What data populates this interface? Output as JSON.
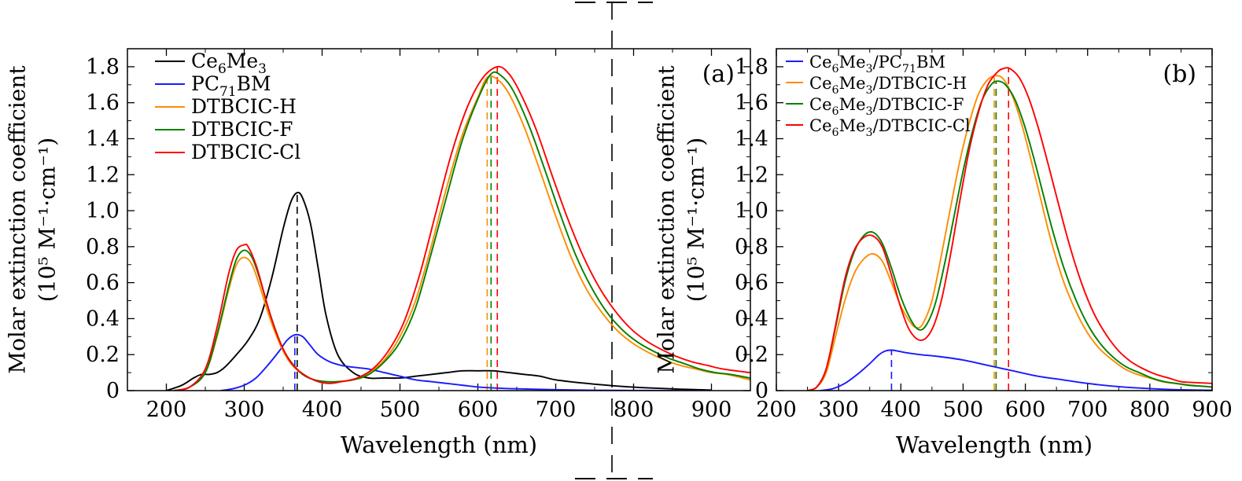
{
  "chart_data": [
    {
      "type": "line",
      "panel_label": "(a)",
      "xlabel": "Wavelength (nm)",
      "ylabel_line1": "Molar extinction coefficient",
      "ylabel_line2": "(10⁵ M⁻¹·cm⁻¹)",
      "xlim": [
        150,
        950
      ],
      "ylim": [
        0,
        1.9
      ],
      "xticks": [
        200,
        300,
        400,
        500,
        600,
        700,
        800,
        900
      ],
      "yticks": [
        0,
        0.2,
        0.4,
        0.6,
        0.8,
        1.0,
        1.2,
        1.4,
        1.6,
        1.8
      ],
      "ytick_labels": [
        "0",
        "0.2",
        "0.4",
        "0.6",
        "0.8",
        "1.0",
        "1.2",
        "1.4",
        "1.6",
        "1.8"
      ],
      "legend_position": "top-left",
      "series": [
        {
          "name": "Ce6Me3",
          "legend_base": "Ce",
          "legend_sub": "6",
          "legend_rest": "Me",
          "legend_sub2": "3",
          "legend_rest2": "",
          "color": "#000000",
          "x": [
            200,
            220,
            235,
            245,
            255,
            265,
            275,
            290,
            305,
            320,
            335,
            350,
            360,
            368,
            375,
            385,
            395,
            405,
            420,
            440,
            460,
            480,
            500,
            520,
            540,
            560,
            580,
            600,
            620,
            640,
            660,
            680,
            700,
            740,
            780,
            820,
            860,
            900
          ],
          "y": [
            0.0,
            0.03,
            0.07,
            0.09,
            0.09,
            0.1,
            0.13,
            0.2,
            0.28,
            0.4,
            0.62,
            0.9,
            1.05,
            1.1,
            1.07,
            0.93,
            0.68,
            0.42,
            0.2,
            0.1,
            0.07,
            0.07,
            0.07,
            0.08,
            0.09,
            0.1,
            0.11,
            0.11,
            0.11,
            0.1,
            0.09,
            0.08,
            0.06,
            0.04,
            0.025,
            0.015,
            0.008,
            0.003
          ],
          "peak_x": 368,
          "peak_y": 1.1
        },
        {
          "name": "PC71BM",
          "legend_base": "PC",
          "legend_sub": "71",
          "legend_rest": "BM",
          "legend_sub2": "",
          "legend_rest2": "",
          "color": "#1a1aff",
          "x": [
            270,
            285,
            300,
            315,
            330,
            345,
            355,
            365,
            375,
            385,
            395,
            410,
            425,
            440,
            460,
            480,
            500,
            520,
            540,
            560,
            580,
            600,
            620,
            650,
            700,
            750,
            800,
            850,
            900
          ],
          "y": [
            0.0,
            0.01,
            0.03,
            0.07,
            0.14,
            0.22,
            0.28,
            0.31,
            0.3,
            0.25,
            0.2,
            0.16,
            0.14,
            0.13,
            0.12,
            0.1,
            0.08,
            0.06,
            0.05,
            0.04,
            0.03,
            0.02,
            0.015,
            0.01,
            0.005,
            0.002,
            0.001,
            0.0,
            0.0
          ],
          "peak_x": 365,
          "peak_y": 0.31
        },
        {
          "name": "DTBCIC-H",
          "legend_base": "DTBCIC-H",
          "legend_sub": "",
          "legend_rest": "",
          "legend_sub2": "",
          "legend_rest2": "",
          "color": "#ff8c00",
          "x": [
            210,
            230,
            250,
            265,
            280,
            290,
            300,
            310,
            320,
            330,
            340,
            350,
            360,
            375,
            390,
            405,
            420,
            440,
            460,
            480,
            500,
            520,
            540,
            560,
            580,
            600,
            612,
            625,
            640,
            660,
            680,
            700,
            720,
            740,
            760,
            780,
            800,
            820,
            840,
            860,
            880,
            900,
            920,
            950
          ],
          "y": [
            0.0,
            0.02,
            0.1,
            0.3,
            0.56,
            0.7,
            0.74,
            0.7,
            0.58,
            0.44,
            0.32,
            0.22,
            0.15,
            0.09,
            0.06,
            0.05,
            0.05,
            0.06,
            0.1,
            0.17,
            0.3,
            0.5,
            0.8,
            1.13,
            1.42,
            1.63,
            1.74,
            1.73,
            1.65,
            1.46,
            1.22,
            0.97,
            0.74,
            0.56,
            0.43,
            0.33,
            0.26,
            0.21,
            0.17,
            0.14,
            0.12,
            0.1,
            0.09,
            0.06
          ],
          "peak_x": 612,
          "peak_y": 1.75
        },
        {
          "name": "DTBCIC-F",
          "legend_base": "DTBCIC-F",
          "legend_sub": "",
          "legend_rest": "",
          "legend_sub2": "",
          "legend_rest2": "",
          "color": "#008000",
          "x": [
            210,
            230,
            250,
            265,
            280,
            290,
            300,
            310,
            320,
            330,
            340,
            350,
            360,
            375,
            390,
            405,
            420,
            440,
            460,
            480,
            500,
            520,
            540,
            560,
            580,
            600,
            617,
            630,
            645,
            665,
            685,
            705,
            725,
            745,
            765,
            785,
            805,
            825,
            845,
            865,
            885,
            905,
            925,
            950
          ],
          "y": [
            0.0,
            0.02,
            0.1,
            0.31,
            0.58,
            0.73,
            0.78,
            0.74,
            0.62,
            0.47,
            0.34,
            0.23,
            0.16,
            0.09,
            0.06,
            0.05,
            0.05,
            0.06,
            0.09,
            0.16,
            0.27,
            0.46,
            0.76,
            1.08,
            1.39,
            1.62,
            1.76,
            1.75,
            1.67,
            1.48,
            1.24,
            0.99,
            0.76,
            0.58,
            0.44,
            0.34,
            0.27,
            0.22,
            0.18,
            0.15,
            0.12,
            0.1,
            0.09,
            0.07
          ],
          "peak_x": 617,
          "peak_y": 1.76
        },
        {
          "name": "DTBCIC-Cl",
          "legend_base": "DTBCIC-Cl",
          "legend_sub": "",
          "legend_rest": "",
          "legend_sub2": "",
          "legend_rest2": "",
          "color": "#ff0000",
          "x": [
            210,
            230,
            250,
            265,
            280,
            290,
            300,
            305,
            315,
            325,
            335,
            345,
            355,
            365,
            380,
            395,
            410,
            425,
            445,
            465,
            485,
            505,
            525,
            545,
            565,
            585,
            605,
            625,
            640,
            655,
            675,
            695,
            715,
            735,
            755,
            775,
            795,
            815,
            835,
            855,
            875,
            895,
            915,
            950
          ],
          "y": [
            0.0,
            0.02,
            0.12,
            0.35,
            0.65,
            0.78,
            0.81,
            0.8,
            0.7,
            0.55,
            0.4,
            0.28,
            0.19,
            0.13,
            0.08,
            0.05,
            0.04,
            0.05,
            0.07,
            0.12,
            0.22,
            0.38,
            0.64,
            0.97,
            1.3,
            1.56,
            1.73,
            1.8,
            1.76,
            1.65,
            1.45,
            1.2,
            0.96,
            0.75,
            0.58,
            0.45,
            0.35,
            0.28,
            0.23,
            0.19,
            0.16,
            0.14,
            0.12,
            0.1
          ],
          "peak_x": 625,
          "peak_y": 1.8
        }
      ]
    },
    {
      "type": "line",
      "panel_label": "(b)",
      "xlabel": "Wavelength (nm)",
      "ylabel_line1": "Molar extinction coefficient",
      "ylabel_line2": "(10⁵ M⁻¹·cm⁻¹)",
      "xlim": [
        200,
        900
      ],
      "ylim": [
        0,
        1.9
      ],
      "xticks": [
        200,
        300,
        400,
        500,
        600,
        700,
        800,
        900
      ],
      "yticks": [
        0,
        0.2,
        0.4,
        0.6,
        0.8,
        1.0,
        1.2,
        1.4,
        1.6,
        1.8
      ],
      "ytick_labels": [
        "0",
        "0.2",
        "0.4",
        "0.6",
        "0.8",
        "1.0",
        "1.2",
        "1.4",
        "1.6",
        "1.8"
      ],
      "legend_position": "top-left",
      "series": [
        {
          "name": "Ce6Me3/PC71BM",
          "legend_base": "Ce",
          "legend_sub": "6",
          "legend_rest": "Me",
          "legend_sub2": "3",
          "legend_rest2": "/PC",
          "legend_sub3": "71",
          "legend_rest3": "BM",
          "color": "#1a1aff",
          "x": [
            270,
            290,
            310,
            330,
            350,
            365,
            375,
            385,
            395,
            410,
            430,
            460,
            500,
            540,
            580,
            620,
            660,
            700,
            740,
            780,
            820,
            860,
            900
          ],
          "y": [
            0.0,
            0.01,
            0.04,
            0.09,
            0.15,
            0.2,
            0.22,
            0.225,
            0.22,
            0.21,
            0.2,
            0.19,
            0.17,
            0.14,
            0.11,
            0.08,
            0.06,
            0.04,
            0.025,
            0.015,
            0.008,
            0.004,
            0.002
          ],
          "peak_x": 385,
          "peak_y": 0.225
        },
        {
          "name": "Ce6Me3/DTBCIC-H",
          "legend_base": "Ce",
          "legend_sub": "6",
          "legend_rest": "Me",
          "legend_sub2": "3",
          "legend_rest2": "/DTBCIC-H",
          "legend_sub3": "",
          "legend_rest3": "",
          "color": "#ff8c00",
          "x": [
            250,
            265,
            280,
            295,
            310,
            325,
            340,
            355,
            370,
            385,
            400,
            415,
            425,
            435,
            450,
            465,
            480,
            495,
            510,
            525,
            540,
            553,
            565,
            580,
            595,
            610,
            625,
            640,
            660,
            680,
            700,
            720,
            740,
            760,
            780,
            800,
            820,
            840,
            860,
            880,
            900
          ],
          "y": [
            0.0,
            0.02,
            0.1,
            0.3,
            0.5,
            0.65,
            0.73,
            0.76,
            0.72,
            0.6,
            0.47,
            0.38,
            0.35,
            0.37,
            0.5,
            0.75,
            1.02,
            1.28,
            1.49,
            1.65,
            1.73,
            1.75,
            1.73,
            1.63,
            1.47,
            1.27,
            1.06,
            0.85,
            0.62,
            0.45,
            0.32,
            0.23,
            0.17,
            0.12,
            0.09,
            0.07,
            0.05,
            0.04,
            0.03,
            0.025,
            0.02
          ],
          "peak_x": 550,
          "peak_y": 1.75
        },
        {
          "name": "Ce6Me3/DTBCIC-F",
          "legend_base": "Ce",
          "legend_sub": "6",
          "legend_rest": "Me",
          "legend_sub2": "3",
          "legend_rest2": "/DTBCIC-F",
          "legend_sub3": "",
          "legend_rest3": "",
          "color": "#008000",
          "x": [
            250,
            265,
            280,
            295,
            310,
            325,
            340,
            355,
            370,
            385,
            400,
            415,
            428,
            440,
            455,
            470,
            485,
            500,
            515,
            530,
            545,
            556,
            568,
            583,
            598,
            613,
            628,
            643,
            663,
            683,
            703,
            723,
            743,
            763,
            783,
            803,
            823,
            843,
            863,
            883,
            900
          ],
          "y": [
            0.0,
            0.02,
            0.12,
            0.35,
            0.6,
            0.77,
            0.86,
            0.88,
            0.82,
            0.68,
            0.52,
            0.4,
            0.34,
            0.36,
            0.48,
            0.7,
            0.96,
            1.22,
            1.44,
            1.61,
            1.7,
            1.72,
            1.7,
            1.62,
            1.48,
            1.3,
            1.1,
            0.9,
            0.67,
            0.49,
            0.35,
            0.25,
            0.18,
            0.13,
            0.1,
            0.07,
            0.05,
            0.04,
            0.03,
            0.025,
            0.02
          ],
          "peak_x": 553,
          "peak_y": 1.72
        },
        {
          "name": "Ce6Me3/DTBCIC-Cl",
          "legend_base": "Ce",
          "legend_sub": "6",
          "legend_rest": "Me",
          "legend_sub2": "3",
          "legend_rest2": "/DTBCIC-Cl",
          "legend_sub3": "",
          "legend_rest3": "",
          "color": "#ff0000",
          "x": [
            250,
            265,
            280,
            295,
            310,
            325,
            340,
            355,
            370,
            385,
            400,
            415,
            433,
            450,
            465,
            480,
            495,
            510,
            525,
            540,
            555,
            565,
            575,
            590,
            605,
            620,
            635,
            650,
            670,
            690,
            710,
            730,
            750,
            770,
            790,
            810,
            830,
            850,
            870,
            900
          ],
          "y": [
            0.0,
            0.02,
            0.12,
            0.36,
            0.62,
            0.78,
            0.85,
            0.86,
            0.8,
            0.64,
            0.46,
            0.33,
            0.28,
            0.34,
            0.5,
            0.76,
            1.06,
            1.34,
            1.55,
            1.7,
            1.77,
            1.79,
            1.79,
            1.74,
            1.63,
            1.47,
            1.28,
            1.08,
            0.82,
            0.6,
            0.43,
            0.31,
            0.22,
            0.16,
            0.12,
            0.09,
            0.07,
            0.05,
            0.045,
            0.04
          ],
          "peak_x": 573,
          "peak_y": 1.79
        }
      ]
    }
  ]
}
